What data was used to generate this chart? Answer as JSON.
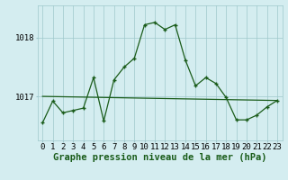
{
  "x": [
    0,
    1,
    2,
    3,
    4,
    5,
    6,
    7,
    8,
    9,
    10,
    11,
    12,
    13,
    14,
    15,
    16,
    17,
    18,
    19,
    20,
    21,
    22,
    23
  ],
  "y": [
    1016.55,
    1016.92,
    1016.72,
    1016.76,
    1016.8,
    1017.32,
    1016.58,
    1017.28,
    1017.5,
    1017.65,
    1018.22,
    1018.26,
    1018.14,
    1018.22,
    1017.62,
    1017.18,
    1017.32,
    1017.22,
    1016.98,
    1016.6,
    1016.6,
    1016.68,
    1016.82,
    1016.93
  ],
  "trend_x": [
    0,
    23
  ],
  "trend_y": [
    1017.0,
    1016.93
  ],
  "line_color": "#1a5c1a",
  "bg_color": "#d4edf0",
  "grid_color": "#9ec8cc",
  "ylabel_ticks": [
    1017,
    1018
  ],
  "xlabel": "Graphe pression niveau de la mer (hPa)",
  "xlim": [
    -0.5,
    23.5
  ],
  "ylim": [
    1016.25,
    1018.55
  ],
  "label_fontsize": 7.5,
  "tick_fontsize": 6.5
}
